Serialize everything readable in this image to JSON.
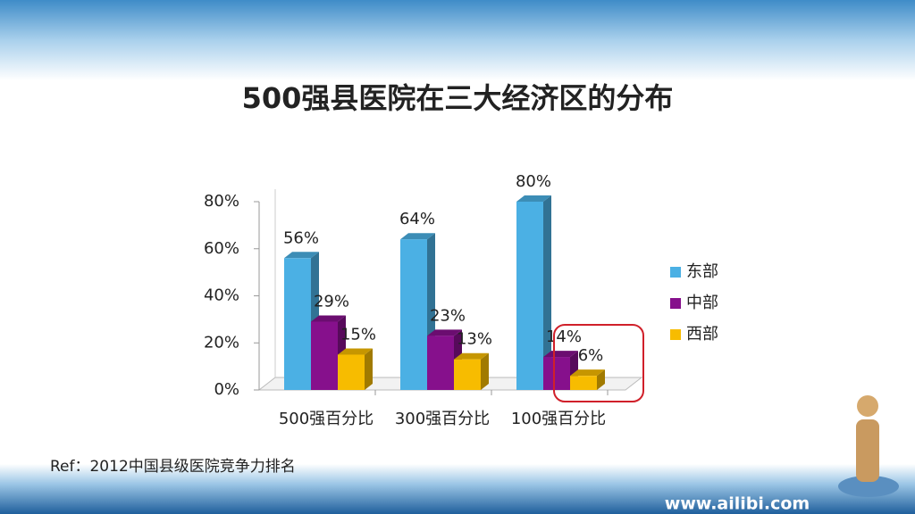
{
  "chart_data": {
    "type": "bar3d",
    "title": "500强县医院在三大经济区的分布",
    "categories": [
      "500强百分比",
      "300强百分比",
      "100强百分比"
    ],
    "series": [
      {
        "name": "东部",
        "color": "#4bb0e4",
        "values": [
          56,
          64,
          80
        ],
        "value_labels": [
          "56%",
          "64%",
          "80%"
        ]
      },
      {
        "name": "中部",
        "color": "#86108c",
        "values": [
          29,
          23,
          14
        ],
        "value_labels": [
          "29%",
          "23%",
          "14%"
        ]
      },
      {
        "name": "西部",
        "color": "#f7bc00",
        "values": [
          15,
          13,
          6
        ],
        "value_labels": [
          "15%",
          "13%",
          "6%"
        ]
      }
    ],
    "ylim": [
      0,
      80
    ],
    "yticks": [
      {
        "value": 0,
        "label": "0%"
      },
      {
        "value": 20,
        "label": "20%"
      },
      {
        "value": 40,
        "label": "40%"
      },
      {
        "value": 60,
        "label": "60%"
      },
      {
        "value": 80,
        "label": "80%"
      }
    ],
    "legend": "right",
    "footnote": "Ref：2012中国县级医院竞争力排名",
    "watermark": "www.ailibi.com"
  }
}
